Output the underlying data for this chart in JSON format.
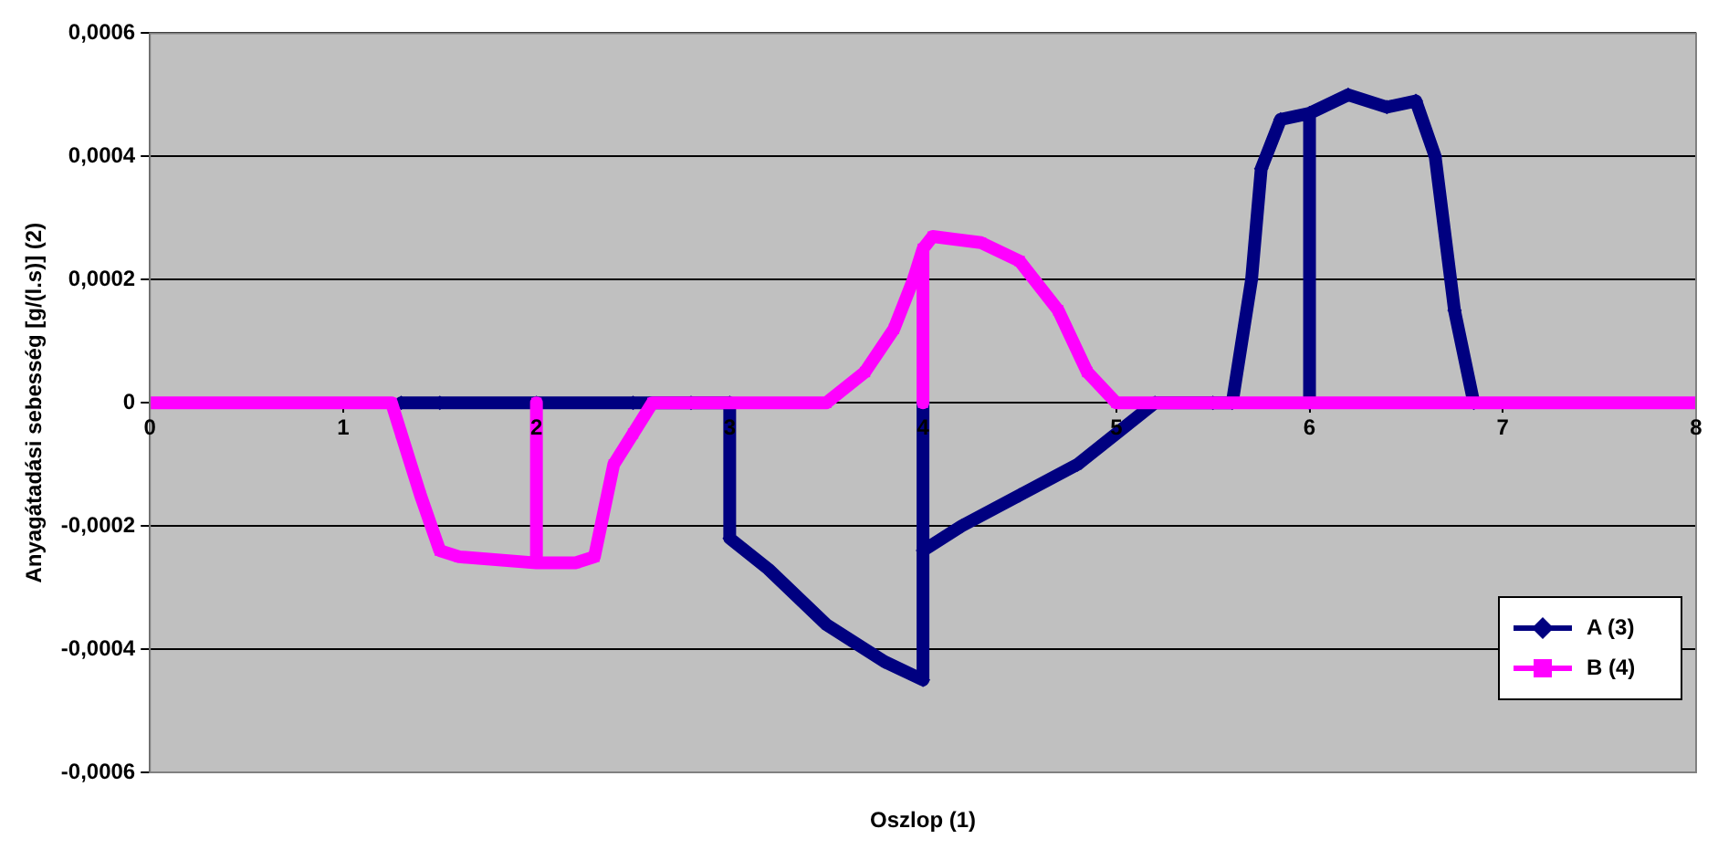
{
  "chart_data": {
    "type": "line",
    "xlabel": "Oszlop (1)",
    "ylabel": "Anyagátadási sebesség [g/(l.s)] (2)",
    "xlim": [
      0,
      8
    ],
    "xticks": [
      0,
      1,
      2,
      3,
      4,
      5,
      6,
      7,
      8
    ],
    "ylim": [
      -0.0006,
      0.0006
    ],
    "yticks": [
      {
        "value": -0.0006,
        "label": "-0,0006"
      },
      {
        "value": -0.0004,
        "label": "-0,0004"
      },
      {
        "value": -0.0002,
        "label": "-0,0002"
      },
      {
        "value": 0,
        "label": "0"
      },
      {
        "value": 0.0002,
        "label": "0,0002"
      },
      {
        "value": 0.0004,
        "label": "0,0004"
      },
      {
        "value": 0.0006,
        "label": "0,0006"
      }
    ],
    "grid": "y",
    "legend": "bottom right",
    "line_style": "solid",
    "series": [
      {
        "name": "A (3)",
        "color": "#000080",
        "marker": "diamond",
        "x": [
          1.3,
          1.5,
          2,
          2.5,
          2.8,
          3,
          3,
          3.2,
          3.5,
          3.8,
          4,
          4,
          4,
          4.2,
          4.5,
          4.8,
          5,
          5.2,
          5.5,
          5.6,
          5.7,
          5.75,
          5.85,
          6,
          6,
          6,
          6.2,
          6.4,
          6.55,
          6.65,
          6.75,
          6.85
        ],
        "values": [
          0,
          0,
          0,
          0,
          0,
          0,
          -0.00022,
          -0.00027,
          -0.00036,
          -0.00042,
          -0.00045,
          0,
          -0.00024,
          -0.0002,
          -0.00015,
          -0.0001,
          -5e-05,
          0,
          0,
          0,
          0.0002,
          0.00038,
          0.00046,
          0.00047,
          0,
          0.00047,
          0.0005,
          0.00048,
          0.00049,
          0.0004,
          0.00015,
          0
        ]
      },
      {
        "name": "B (4)",
        "color": "#ff00ff",
        "marker": "square",
        "x": [
          0,
          0.5,
          1,
          1.25,
          1.3,
          1.4,
          1.5,
          1.6,
          2,
          2,
          2,
          2.2,
          2.3,
          2.4,
          2.5,
          2.6,
          2.8,
          2.95,
          3,
          3,
          3.3,
          3.5,
          3.7,
          3.85,
          3.95,
          4,
          4,
          4,
          4.05,
          4.3,
          4.5,
          4.7,
          4.85,
          5,
          5.2,
          5.6,
          6,
          7,
          8
        ],
        "values": [
          0,
          0,
          0,
          0,
          -5e-05,
          -0.00015,
          -0.00024,
          -0.00025,
          -0.00026,
          0,
          -0.00026,
          -0.00026,
          -0.00025,
          -0.0001,
          -5e-05,
          0,
          0,
          0,
          0,
          0,
          0,
          0,
          5e-05,
          0.00012,
          0.0002,
          0.00025,
          0,
          0.00025,
          0.00027,
          0.00026,
          0.00023,
          0.00015,
          5e-05,
          0,
          0,
          0,
          0,
          0,
          0
        ]
      }
    ]
  }
}
